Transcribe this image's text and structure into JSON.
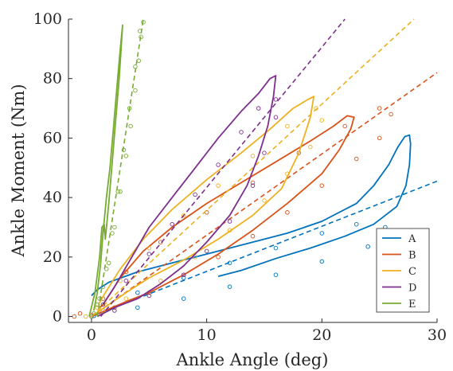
{
  "chart_data": {
    "type": "line",
    "xlabel": "Ankle Angle (deg)",
    "ylabel": "Ankle Moment (Nm)",
    "xlim": [
      -2,
      30
    ],
    "ylim": [
      -2,
      100
    ],
    "x_ticks": [
      "0",
      "10",
      "20",
      "30"
    ],
    "y_ticks": [
      "0",
      "20",
      "40",
      "60",
      "80",
      "100"
    ],
    "grid": false,
    "legend_position": "bottom-right",
    "series": [
      {
        "name": "A",
        "color": "#0072BD",
        "measured": [
          [
            11,
            13.5
          ],
          [
            13,
            15.5
          ],
          [
            16,
            19.5
          ],
          [
            19,
            23
          ],
          [
            22,
            27
          ],
          [
            24.5,
            31
          ],
          [
            26.5,
            37
          ],
          [
            27.3,
            44
          ],
          [
            27.6,
            51
          ],
          [
            27.7,
            58
          ],
          [
            27.6,
            61
          ],
          [
            27.2,
            60.5
          ],
          [
            26.6,
            57
          ],
          [
            25.8,
            51
          ],
          [
            24.5,
            44
          ],
          [
            23,
            38
          ],
          [
            20,
            32
          ],
          [
            17,
            28
          ],
          [
            14,
            25
          ],
          [
            10,
            21
          ],
          [
            7,
            18
          ],
          [
            4,
            15
          ],
          [
            1.5,
            11.5
          ],
          [
            0.5,
            9
          ],
          [
            0,
            7
          ]
        ],
        "model_loop": [
          [
            0.2,
            0.2
          ],
          [
            4,
            3
          ],
          [
            8,
            6
          ],
          [
            12,
            10
          ],
          [
            16,
            14
          ],
          [
            20,
            18.5
          ],
          [
            24,
            23.5
          ],
          [
            26,
            27
          ],
          [
            25.5,
            30
          ],
          [
            23,
            31
          ],
          [
            20,
            28
          ],
          [
            16,
            23
          ],
          [
            12,
            18
          ],
          [
            8,
            13
          ],
          [
            4,
            8
          ],
          [
            1,
            2
          ],
          [
            0.2,
            0.2
          ]
        ],
        "fit_line": [
          [
            0,
            0
          ],
          [
            30,
            45.5
          ]
        ]
      },
      {
        "name": "B",
        "color": "#D95319",
        "measured": [
          [
            0,
            0
          ],
          [
            1.5,
            2.5
          ],
          [
            3,
            5
          ],
          [
            5,
            8
          ],
          [
            8,
            14
          ],
          [
            11,
            21
          ],
          [
            14,
            29
          ],
          [
            17,
            38
          ],
          [
            20,
            48
          ],
          [
            21.5,
            56
          ],
          [
            22.5,
            63
          ],
          [
            22.8,
            67
          ],
          [
            22.2,
            67.5
          ],
          [
            21,
            64
          ],
          [
            19,
            59
          ],
          [
            16,
            52
          ],
          [
            13,
            45
          ],
          [
            10,
            38
          ],
          [
            7,
            30
          ],
          [
            4.5,
            22
          ],
          [
            2.5,
            13
          ],
          [
            1.5,
            7
          ],
          [
            1,
            4
          ],
          [
            0.7,
            3
          ]
        ],
        "model_loop": [
          [
            -1.5,
            0
          ],
          [
            0,
            0.5
          ],
          [
            2,
            3
          ],
          [
            5,
            8
          ],
          [
            8,
            14
          ],
          [
            11,
            20
          ],
          [
            14,
            27
          ],
          [
            17,
            35
          ],
          [
            20,
            44
          ],
          [
            23,
            53
          ],
          [
            25,
            60
          ],
          [
            26,
            68
          ],
          [
            25,
            70
          ],
          [
            22,
            64
          ],
          [
            18,
            55
          ],
          [
            14,
            45
          ],
          [
            10,
            35
          ],
          [
            6,
            25
          ],
          [
            3,
            15
          ],
          [
            1,
            6
          ],
          [
            -1,
            1
          ]
        ],
        "fit_line": [
          [
            0,
            0
          ],
          [
            30,
            82
          ]
        ]
      },
      {
        "name": "C",
        "color": "#EDB120",
        "measured": [
          [
            0,
            0
          ],
          [
            1.5,
            4
          ],
          [
            3,
            8
          ],
          [
            5,
            13
          ],
          [
            8,
            19
          ],
          [
            11,
            26
          ],
          [
            14,
            34
          ],
          [
            16.5,
            43
          ],
          [
            18,
            55
          ],
          [
            19,
            67
          ],
          [
            19.3,
            74
          ],
          [
            18.8,
            73
          ],
          [
            17.5,
            70
          ],
          [
            15.5,
            63
          ],
          [
            13,
            55
          ],
          [
            10,
            46
          ],
          [
            7,
            36
          ],
          [
            4.5,
            26
          ],
          [
            2.5,
            16
          ],
          [
            1.2,
            8
          ],
          [
            0.6,
            4
          ]
        ],
        "model_loop": [
          [
            -0.5,
            0
          ],
          [
            1,
            2
          ],
          [
            3,
            6
          ],
          [
            6,
            12
          ],
          [
            9,
            20
          ],
          [
            12,
            29
          ],
          [
            15,
            39
          ],
          [
            17,
            48
          ],
          [
            19,
            57
          ],
          [
            20,
            66
          ],
          [
            19.5,
            70
          ],
          [
            17,
            64
          ],
          [
            14,
            54
          ],
          [
            11,
            44
          ],
          [
            8,
            34
          ],
          [
            5,
            23
          ],
          [
            2.5,
            12
          ],
          [
            0.5,
            3
          ]
        ],
        "fit_line": [
          [
            0,
            0
          ],
          [
            28,
            100
          ]
        ]
      },
      {
        "name": "D",
        "color": "#7E2F8E",
        "measured": [
          [
            0.5,
            0
          ],
          [
            2,
            3
          ],
          [
            4,
            6
          ],
          [
            6,
            11
          ],
          [
            8,
            17
          ],
          [
            10,
            25
          ],
          [
            12,
            34
          ],
          [
            13.5,
            44
          ],
          [
            14.5,
            54
          ],
          [
            15.3,
            64
          ],
          [
            15.8,
            74
          ],
          [
            16,
            81
          ],
          [
            15.5,
            80
          ],
          [
            14.5,
            75
          ],
          [
            13,
            69
          ],
          [
            11,
            60
          ],
          [
            9,
            50
          ],
          [
            7,
            40
          ],
          [
            5,
            30
          ],
          [
            3.5,
            20
          ],
          [
            2,
            10
          ],
          [
            1,
            4
          ]
        ],
        "model_loop": [
          [
            0,
            0
          ],
          [
            2,
            2
          ],
          [
            5,
            7
          ],
          [
            8,
            14
          ],
          [
            10,
            22
          ],
          [
            12,
            32
          ],
          [
            14,
            44
          ],
          [
            15,
            55
          ],
          [
            16,
            67
          ],
          [
            16,
            73
          ],
          [
            14.5,
            70
          ],
          [
            13,
            62
          ],
          [
            11,
            51
          ],
          [
            9,
            41
          ],
          [
            7,
            31
          ],
          [
            5,
            21
          ],
          [
            3,
            12
          ],
          [
            1,
            4
          ]
        ],
        "fit_line": [
          [
            0.8,
            0
          ],
          [
            22,
            100
          ]
        ]
      },
      {
        "name": "E",
        "color": "#77AC30",
        "measured": [
          [
            -0.2,
            0
          ],
          [
            0.3,
            8
          ],
          [
            0.7,
            20
          ],
          [
            0.9,
            30
          ],
          [
            1.1,
            31
          ],
          [
            1.2,
            26
          ],
          [
            1.5,
            38
          ],
          [
            1.8,
            52
          ],
          [
            2.1,
            66
          ],
          [
            2.4,
            80
          ],
          [
            2.6,
            92
          ],
          [
            2.7,
            98
          ],
          [
            2.5,
            90
          ],
          [
            2.2,
            77
          ],
          [
            1.9,
            63
          ],
          [
            1.6,
            50
          ],
          [
            1.3,
            40
          ],
          [
            1.0,
            28
          ],
          [
            0.8,
            18
          ],
          [
            0.5,
            8
          ],
          [
            0.2,
            2
          ]
        ],
        "model_loop": [
          [
            0,
            0
          ],
          [
            0.5,
            4
          ],
          [
            1,
            10
          ],
          [
            1.5,
            18
          ],
          [
            2,
            30
          ],
          [
            2.5,
            42
          ],
          [
            3,
            54
          ],
          [
            3.4,
            64
          ],
          [
            3.8,
            76
          ],
          [
            4.1,
            86
          ],
          [
            4.3,
            94
          ],
          [
            4.5,
            99
          ],
          [
            4.2,
            96
          ],
          [
            3.8,
            84
          ],
          [
            3.3,
            70
          ],
          [
            2.8,
            56
          ],
          [
            2.3,
            42
          ],
          [
            1.8,
            28
          ],
          [
            1.3,
            16
          ],
          [
            0.7,
            6
          ],
          [
            0.2,
            1
          ]
        ],
        "fit_line": [
          [
            0.5,
            0
          ],
          [
            4.5,
            100
          ]
        ]
      }
    ]
  }
}
